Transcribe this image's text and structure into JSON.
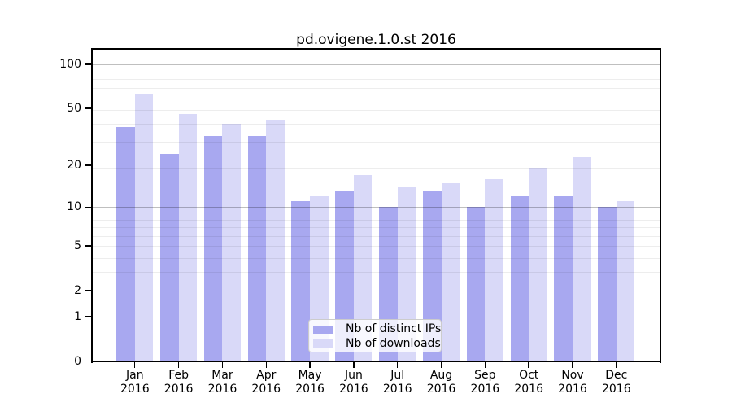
{
  "title": "pd.ovigene.1.0.st 2016",
  "chart_data": {
    "type": "bar",
    "title": "pd.ovigene.1.0.st 2016",
    "x_tick_labels": [
      {
        "month": "Jan",
        "year": "2016"
      },
      {
        "month": "Feb",
        "year": "2016"
      },
      {
        "month": "Mar",
        "year": "2016"
      },
      {
        "month": "Apr",
        "year": "2016"
      },
      {
        "month": "May",
        "year": "2016"
      },
      {
        "month": "Jun",
        "year": "2016"
      },
      {
        "month": "Jul",
        "year": "2016"
      },
      {
        "month": "Aug",
        "year": "2016"
      },
      {
        "month": "Sep",
        "year": "2016"
      },
      {
        "month": "Oct",
        "year": "2016"
      },
      {
        "month": "Nov",
        "year": "2016"
      },
      {
        "month": "Dec",
        "year": "2016"
      }
    ],
    "series": [
      {
        "name": "Nb of distinct IPs",
        "color": "#a8a8f0",
        "values": [
          37,
          24,
          32,
          32,
          11,
          13,
          10,
          13,
          10,
          12,
          12,
          10
        ]
      },
      {
        "name": "Nb of downloads",
        "color": "#d9d9f8",
        "values": [
          62,
          46,
          39,
          42,
          12,
          17,
          14,
          15,
          16,
          19,
          23,
          11
        ]
      }
    ],
    "yscale": "log10(1+x)",
    "yticks": [
      0,
      1,
      2,
      5,
      10,
      20,
      50,
      100
    ],
    "ylim": [
      0,
      127
    ],
    "grid": true,
    "grid_major_values": [
      1,
      10,
      100
    ],
    "grid_minor_values": [
      2,
      3,
      4,
      5,
      6,
      7,
      8,
      19,
      29,
      39,
      49,
      59,
      69,
      79,
      89
    ],
    "legend_position": "lower center",
    "colors": {
      "grid_major": "rgba(0,0,0,0.25)",
      "grid_minor": "rgba(0,0,0,0.07)",
      "axis": "#000000",
      "legend_border": "#cccccc",
      "background": "#ffffff"
    }
  }
}
